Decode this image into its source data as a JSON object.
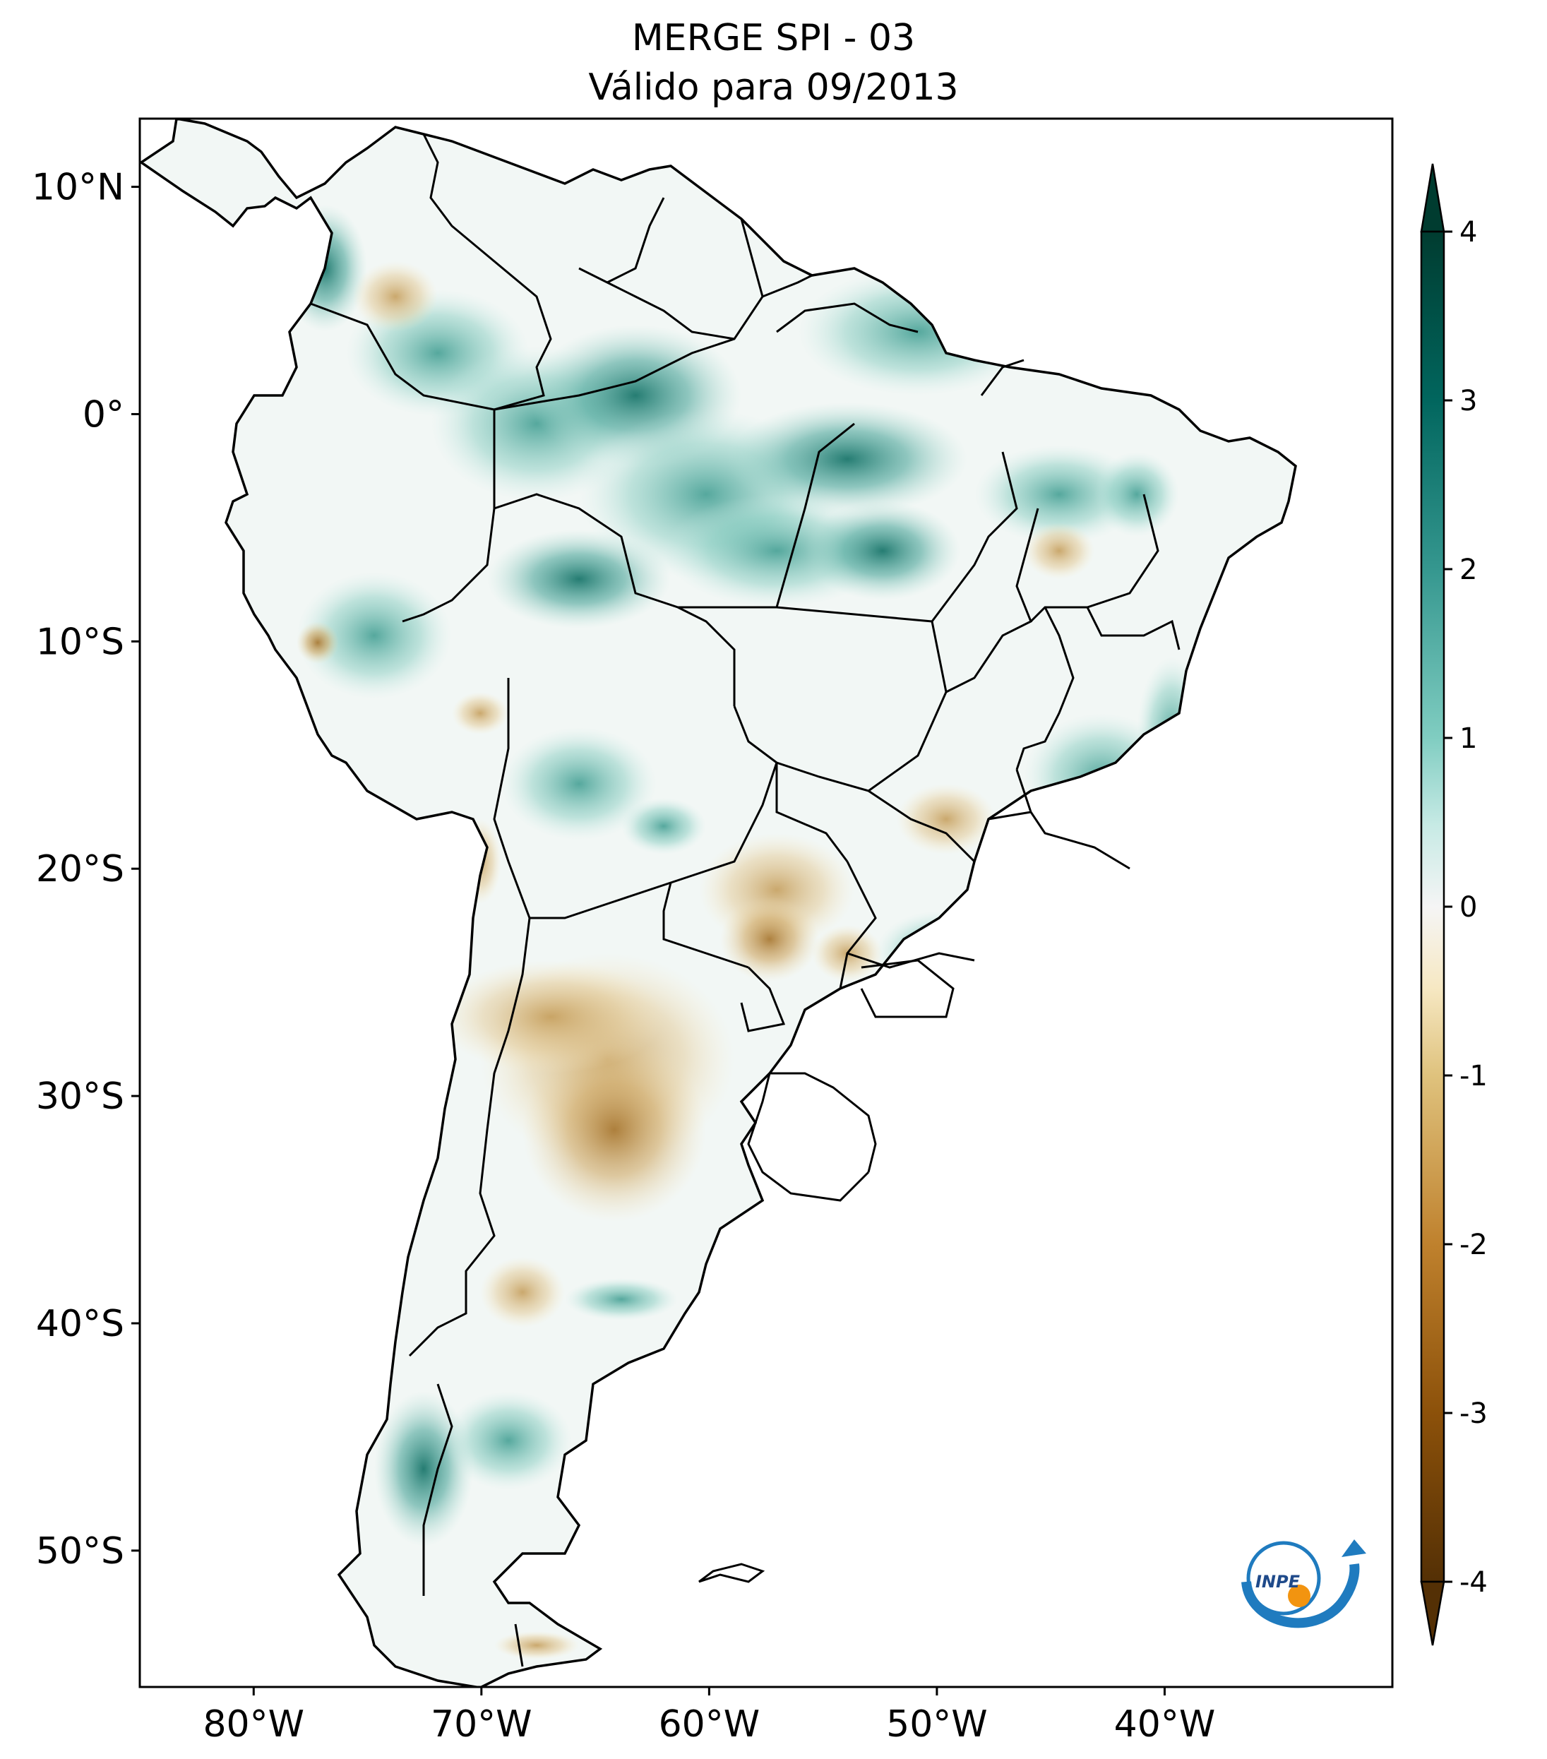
{
  "title": {
    "line1": "MERGE   SPI - 03",
    "line2": "Válido para 09/2013"
  },
  "map": {
    "lon_range": [
      -85,
      -30
    ],
    "lat_range": [
      -56,
      13
    ],
    "lon_ticks": [
      {
        "value": -80,
        "label": "80°W"
      },
      {
        "value": -70,
        "label": "70°W"
      },
      {
        "value": -60,
        "label": "60°W"
      },
      {
        "value": -50,
        "label": "50°W"
      },
      {
        "value": -40,
        "label": "40°W"
      }
    ],
    "lat_ticks": [
      {
        "value": 10,
        "label": "10°N"
      },
      {
        "value": 0,
        "label": "0°"
      },
      {
        "value": -10,
        "label": "10°S"
      },
      {
        "value": -20,
        "label": "20°S"
      },
      {
        "value": -30,
        "label": "30°S"
      },
      {
        "value": -40,
        "label": "40°S"
      },
      {
        "value": -50,
        "label": "50°S"
      }
    ],
    "wet_color": "#01665e",
    "dry_color": "#8c510a"
  },
  "colorbar": {
    "range": [
      -4,
      4
    ],
    "colormap": "BrBG",
    "extend": "both",
    "ticks": [
      {
        "value": 4,
        "label": "4"
      },
      {
        "value": 3,
        "label": "3"
      },
      {
        "value": 2,
        "label": "2"
      },
      {
        "value": 1,
        "label": "1"
      },
      {
        "value": 0,
        "label": "0"
      },
      {
        "value": -1,
        "label": "-1"
      },
      {
        "value": -2,
        "label": "-2"
      },
      {
        "value": -3,
        "label": "-3"
      },
      {
        "value": -4,
        "label": "-4"
      }
    ]
  },
  "logo": {
    "text": "INPE"
  }
}
